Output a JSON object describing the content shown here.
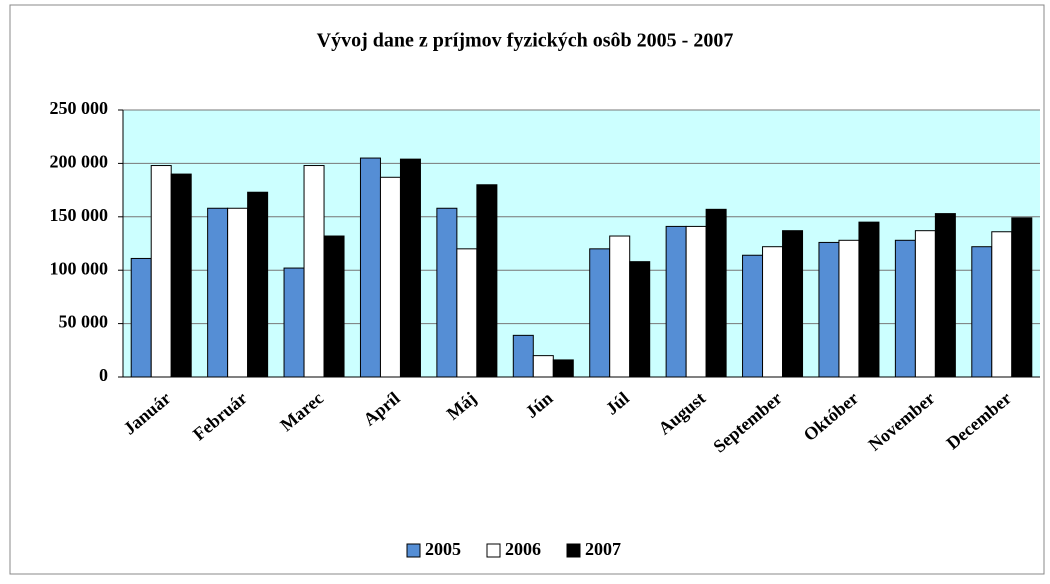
{
  "chart_data": {
    "type": "bar",
    "title": "Vývoj dane z príjmov fyzických osôb 2005 - 2007",
    "categories": [
      "Január",
      "Február",
      "Marec",
      "Apríl",
      "Máj",
      "Jún",
      "Júl",
      "August",
      "September",
      "Október",
      "November",
      "December"
    ],
    "series": [
      {
        "name": "2005",
        "color": "#558ed5",
        "values": [
          111000,
          158000,
          102000,
          205000,
          158000,
          39000,
          120000,
          141000,
          114000,
          126000,
          128000,
          122000
        ]
      },
      {
        "name": "2006",
        "color": "#ffffff",
        "values": [
          198000,
          158000,
          198000,
          187000,
          120000,
          20000,
          132000,
          141000,
          122000,
          128000,
          137000,
          136000
        ]
      },
      {
        "name": "2007",
        "color": "#000000",
        "values": [
          190000,
          173000,
          132000,
          204000,
          180000,
          16000,
          108000,
          157000,
          137000,
          145000,
          153000,
          149000
        ]
      }
    ],
    "ylim": [
      0,
      250000
    ],
    "yticks": [
      0,
      {
        "value": 50000,
        "label": "50 000"
      },
      {
        "value": 100000,
        "label": "100 000"
      },
      {
        "value": 150000,
        "label": "150 000"
      },
      {
        "value": 200000,
        "label": "200 000"
      },
      {
        "value": 250000,
        "label": "250 000"
      }
    ],
    "grid": true,
    "legend": "bottom"
  }
}
